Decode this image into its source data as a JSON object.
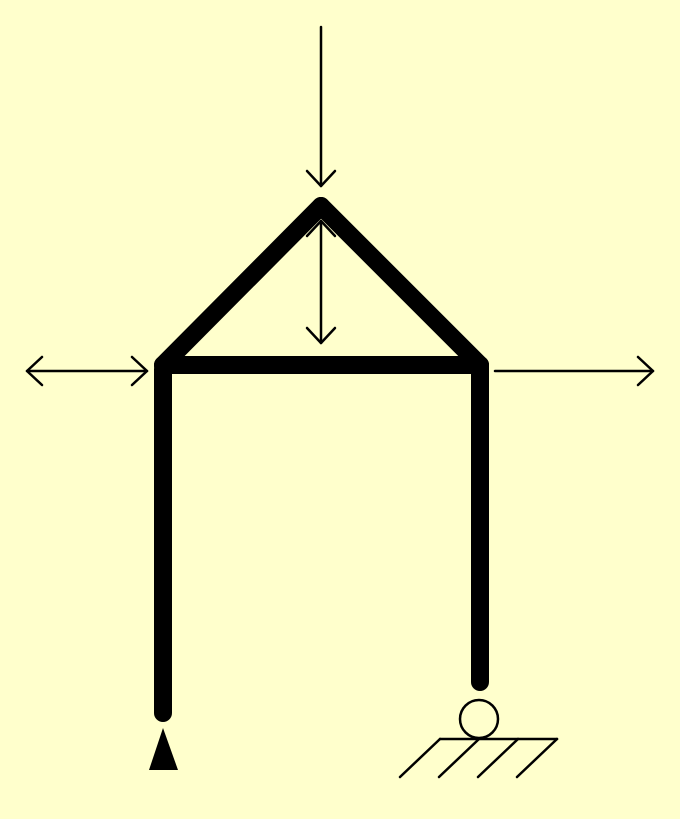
{
  "diagram": {
    "type": "structural-frame",
    "background_color": "#FFFFCC",
    "line_color": "#000000",
    "supports": [
      {
        "kind": "pin-support",
        "icon": "triangle-pin-icon"
      },
      {
        "kind": "roller-support",
        "icon": "roller-on-ground-icon"
      }
    ],
    "loads": [
      {
        "kind": "point-load",
        "direction": "down",
        "icon": "arrow-down-icon"
      },
      {
        "kind": "point-load",
        "direction": "down",
        "icon": "arrow-down-icon"
      },
      {
        "kind": "point-load",
        "direction": "right",
        "icon": "arrow-right-icon"
      },
      {
        "kind": "point-load",
        "direction": "right",
        "icon": "arrow-right-icon"
      }
    ],
    "members": [
      "left-column",
      "right-column",
      "tie-beam",
      "left-rafter",
      "right-rafter"
    ]
  }
}
